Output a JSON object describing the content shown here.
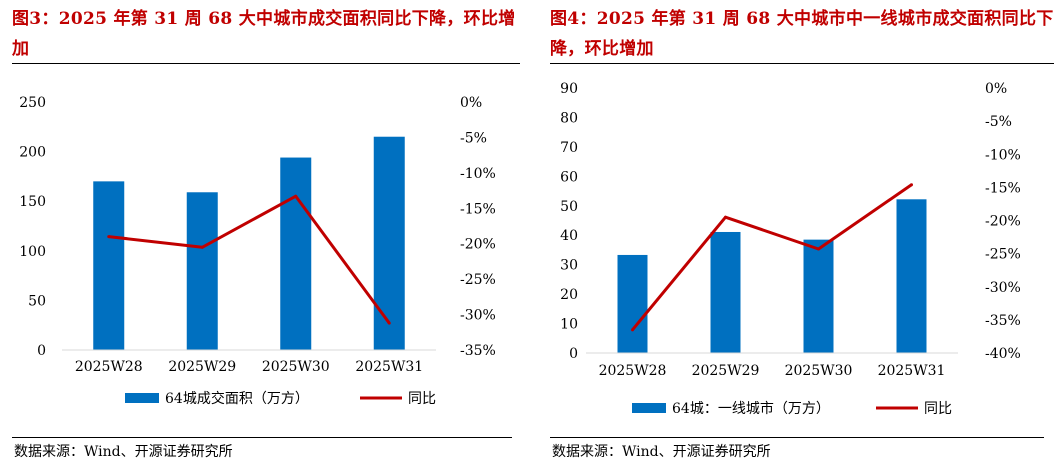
{
  "charts": [
    {
      "title": "图3：2025 年第 31 周 68 大中城市成交面积同比下降，环比增加",
      "source": "数据来源：Wind、开源证券研究所",
      "chart_data": {
        "type": "bar",
        "categories": [
          "2025W28",
          "2025W29",
          "2025W30",
          "2025W31"
        ],
        "series": [
          {
            "name": "64城成交面积（万方）",
            "type": "bar",
            "axis": "left",
            "values": [
              170,
              159,
              194,
              215
            ]
          },
          {
            "name": "同比",
            "type": "line",
            "axis": "right",
            "values": [
              -19.0,
              -20.5,
              -13.3,
              -31.2
            ]
          }
        ],
        "y_left": {
          "min": 0,
          "max": 250,
          "ticks": [
            "0",
            "50",
            "100",
            "150",
            "200",
            "250"
          ],
          "tick_values": [
            0,
            50,
            100,
            150,
            200,
            250
          ]
        },
        "y_right": {
          "min": -35,
          "max": 0,
          "ticks": [
            "-35%",
            "-30%",
            "-25%",
            "-20%",
            "-15%",
            "-10%",
            "-5%",
            "0%"
          ],
          "tick_values": [
            -35,
            -30,
            -25,
            -20,
            -15,
            -10,
            -5,
            0
          ]
        },
        "grid": false,
        "legend_position": "bottom",
        "colors": {
          "bar": "#0070c0",
          "line": "#c00000"
        }
      }
    },
    {
      "title": "图4：2025 年第 31 周 68 大中城市中一线城市成交面积同比下降，环比增加",
      "source": "数据来源：Wind、开源证券研究所",
      "chart_data": {
        "type": "bar",
        "categories": [
          "2025W28",
          "2025W29",
          "2025W30",
          "2025W31"
        ],
        "series": [
          {
            "name": "64城：一线城市（万方）",
            "type": "bar",
            "axis": "left",
            "values": [
              33.3,
              41.1,
              38.5,
              52.2
            ]
          },
          {
            "name": "同比",
            "type": "line",
            "axis": "right",
            "values": [
              -36.5,
              -19.5,
              -24.3,
              -14.6
            ]
          }
        ],
        "y_left": {
          "min": 0,
          "max": 90,
          "ticks": [
            "0",
            "10",
            "20",
            "30",
            "40",
            "50",
            "60",
            "70",
            "80",
            "90"
          ],
          "tick_values": [
            0,
            10,
            20,
            30,
            40,
            50,
            60,
            70,
            80,
            90
          ]
        },
        "y_right": {
          "min": -40,
          "max": 0,
          "ticks": [
            "-40%",
            "-35%",
            "-30%",
            "-25%",
            "-20%",
            "-15%",
            "-10%",
            "-5%",
            "0%"
          ],
          "tick_values": [
            -40,
            -35,
            -30,
            -25,
            -20,
            -15,
            -10,
            -5,
            0
          ]
        },
        "grid": false,
        "legend_position": "bottom",
        "colors": {
          "bar": "#0070c0",
          "line": "#c00000"
        }
      }
    }
  ]
}
